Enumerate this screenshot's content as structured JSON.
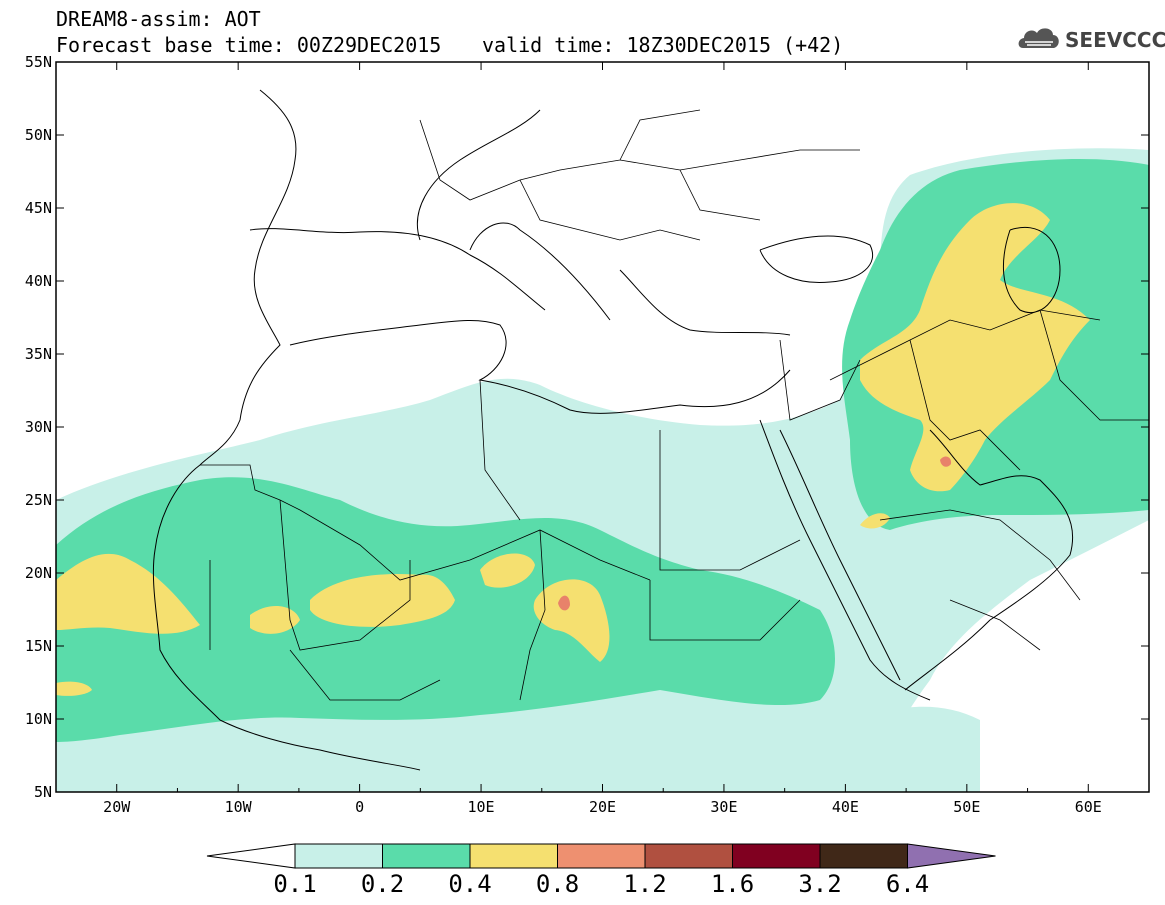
{
  "header": {
    "line1": "DREAM8-assim: AOT",
    "base_time": "Forecast base time: 00Z29DEC2015",
    "valid_time": "valid time: 18Z30DEC2015 (+42)",
    "logo_text": "SEEVCCC"
  },
  "map": {
    "projection": "latlon",
    "lon_range": [
      -25,
      65
    ],
    "lat_range": [
      5,
      55
    ],
    "lat_ticks": [
      "55N",
      "50N",
      "45N",
      "40N",
      "35N",
      "30N",
      "25N",
      "20N",
      "15N",
      "10N",
      "5N"
    ],
    "lon_ticks": [
      "20W",
      "10W",
      "0",
      "10E",
      "20E",
      "30E",
      "40E",
      "50E",
      "60E"
    ]
  },
  "colorbar": {
    "labels": [
      "0.1",
      "0.2",
      "0.4",
      "0.8",
      "1.2",
      "1.6",
      "3.2",
      "6.4"
    ],
    "colors": [
      "#c8f0e8",
      "#5adcaa",
      "#f5e070",
      "#ee9070",
      "#b05040",
      "#800020",
      "#402818",
      "#9070b0"
    ],
    "extend_low_color": "#ffffff"
  },
  "colors": {
    "level1": "#c8f0e8",
    "level2": "#5adcaa",
    "level3": "#f5e070",
    "level4": "#e8826a",
    "border": "#000000"
  }
}
